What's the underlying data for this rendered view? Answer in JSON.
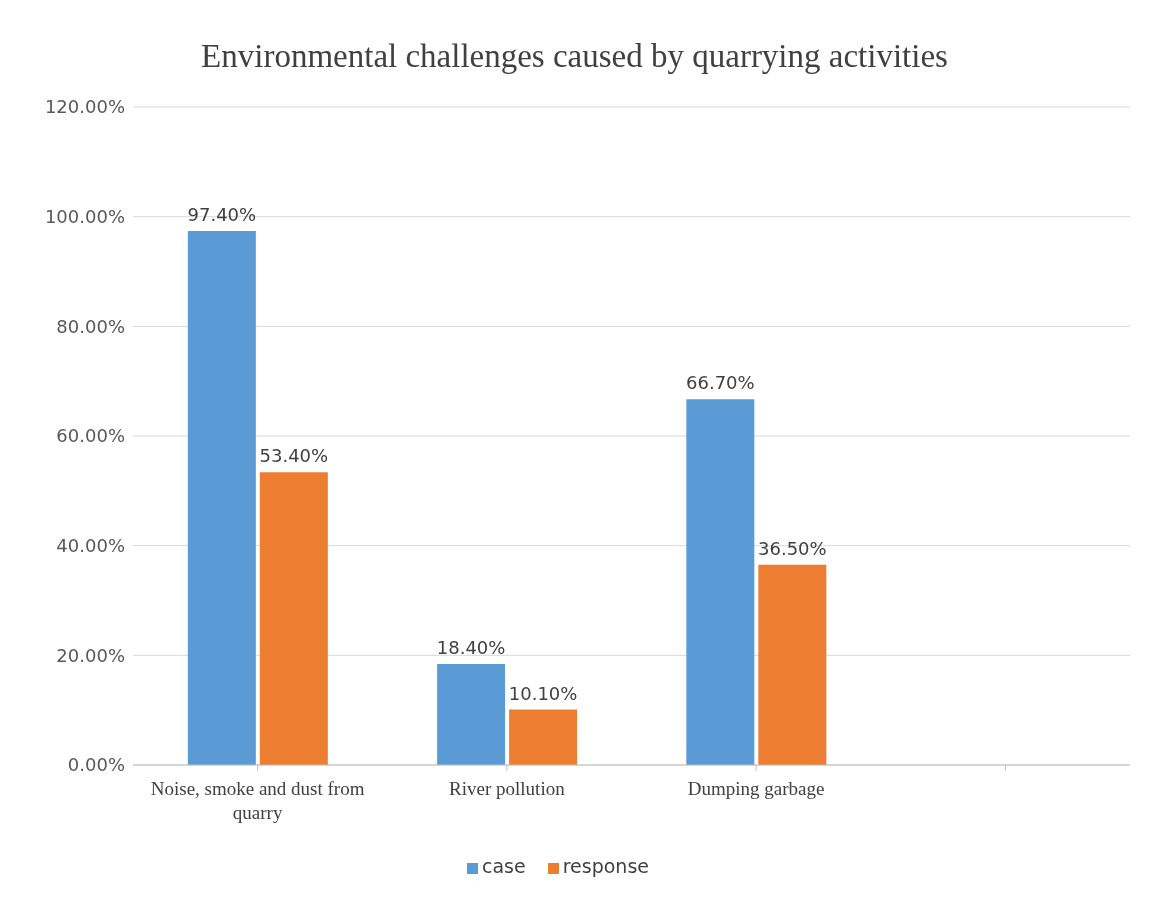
{
  "chart_data": {
    "type": "bar",
    "title": "Environmental challenges caused by quarrying activities",
    "categories": [
      "Noise, smoke and dust from quarry",
      "River pollution",
      "Dumping garbage",
      null
    ],
    "series": [
      {
        "name": "case",
        "color": "#5b9bd5",
        "values": [
          97.4,
          18.4,
          66.7,
          null
        ],
        "value_labels": [
          "97.40%",
          "18.40%",
          "66.70%",
          null
        ]
      },
      {
        "name": "response",
        "color": "#ed7d31",
        "values": [
          53.4,
          10.1,
          36.5,
          null
        ],
        "value_labels": [
          "53.40%",
          "10.10%",
          "36.50%",
          null
        ]
      }
    ],
    "ylim": [
      0,
      120
    ],
    "yticks": [
      {
        "value": 0,
        "label": "0.00%"
      },
      {
        "value": 20,
        "label": "20.00%"
      },
      {
        "value": 40,
        "label": "40.00%"
      },
      {
        "value": 60,
        "label": "60.00%"
      },
      {
        "value": 80,
        "label": "80.00%"
      },
      {
        "value": 100,
        "label": "100.00%"
      },
      {
        "value": 120,
        "label": "120.00%"
      }
    ],
    "grid": "y",
    "legend": "bottom"
  }
}
